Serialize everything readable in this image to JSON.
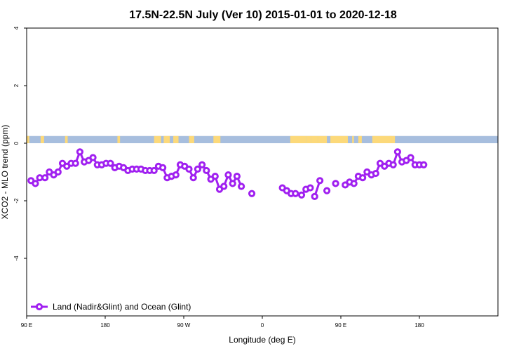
{
  "chart_data": {
    "type": "line",
    "title": "17.5N-22.5N July (Ver 10)   2015-01-01 to 2020-12-18",
    "xlabel": "Longitude (deg E)",
    "ylabel": "XCO2 - MLO trend (ppm)",
    "xlim": [
      -90,
      180
    ],
    "ylim": [
      -6,
      4
    ],
    "x_ticks": [
      {
        "value": -90,
        "label": "90 E"
      },
      {
        "value": -45,
        "label": "180"
      },
      {
        "value": 0,
        "label": "90 W"
      },
      {
        "value": 45,
        "label": "0"
      },
      {
        "value": 90,
        "label": "90 E"
      },
      {
        "value": 135,
        "label": "180"
      }
    ],
    "y_ticks": [
      {
        "value": -4,
        "label": "-4"
      },
      {
        "value": -2,
        "label": "-2"
      },
      {
        "value": 0,
        "label": "0"
      },
      {
        "value": 2,
        "label": "2"
      },
      {
        "value": 4,
        "label": "4"
      }
    ],
    "land_ocean_strip": {
      "y_range": [
        0,
        0.25
      ],
      "ocean_color": "#a7bede",
      "land_color": "#fcd97a",
      "land_segments": [
        [
          -90,
          -88.5
        ],
        [
          -82,
          -80
        ],
        [
          -68,
          -66.5
        ],
        [
          -38,
          -36.5
        ],
        [
          -17,
          -13
        ],
        [
          -11.5,
          -8
        ],
        [
          -6,
          -3
        ],
        [
          3,
          6
        ],
        [
          17,
          21
        ],
        [
          61,
          70
        ],
        [
          70,
          73
        ],
        [
          73,
          77
        ],
        [
          77,
          82
        ],
        [
          84,
          94
        ],
        [
          96.5,
          97.5
        ],
        [
          100,
          102
        ],
        [
          108,
          121
        ],
        [
          118,
          119
        ]
      ]
    },
    "legend": {
      "position": "bottom-left"
    },
    "series": [
      {
        "name": "Land (Nadir&Glint) and Ocean (Glint)",
        "color": "#a020f0",
        "segments": [
          [
            [
              -87.5,
              -1.3
            ],
            [
              -85,
              -1.4
            ],
            [
              -82.5,
              -1.2
            ],
            [
              -79.5,
              -1.2
            ],
            [
              -77,
              -1.0
            ],
            [
              -74.5,
              -1.1
            ],
            [
              -72,
              -1.0
            ],
            [
              -69.5,
              -0.7
            ],
            [
              -67,
              -0.8
            ],
            [
              -64.5,
              -0.7
            ],
            [
              -62,
              -0.7
            ],
            [
              -59.5,
              -0.3
            ],
            [
              -57,
              -0.65
            ],
            [
              -54.5,
              -0.6
            ],
            [
              -52,
              -0.5
            ],
            [
              -49.5,
              -0.75
            ],
            [
              -47,
              -0.75
            ],
            [
              -44.5,
              -0.7
            ],
            [
              -42,
              -0.7
            ],
            [
              -39.5,
              -0.85
            ],
            [
              -37,
              -0.8
            ],
            [
              -34.5,
              -0.85
            ],
            [
              -32,
              -0.95
            ],
            [
              -29.5,
              -0.9
            ],
            [
              -27,
              -0.9
            ],
            [
              -24.5,
              -0.9
            ],
            [
              -22,
              -0.95
            ],
            [
              -19.5,
              -0.95
            ],
            [
              -17,
              -0.95
            ],
            [
              -14.5,
              -0.8
            ],
            [
              -12,
              -0.85
            ],
            [
              -9.5,
              -1.2
            ],
            [
              -7,
              -1.15
            ],
            [
              -4.5,
              -1.1
            ],
            [
              -2,
              -0.75
            ],
            [
              0.5,
              -0.8
            ],
            [
              3,
              -0.9
            ],
            [
              5.5,
              -1.2
            ],
            [
              8,
              -0.9
            ],
            [
              10.5,
              -0.75
            ],
            [
              13,
              -0.95
            ],
            [
              15.5,
              -1.25
            ],
            [
              18,
              -1.15
            ],
            [
              20.5,
              -1.6
            ],
            [
              23,
              -1.5
            ],
            [
              25.5,
              -1.1
            ],
            [
              28,
              -1.4
            ],
            [
              30.5,
              -1.15
            ],
            [
              33,
              -1.5
            ]
          ],
          [
            [
              39,
              -1.75
            ]
          ],
          [
            [
              56.5,
              -1.55
            ],
            [
              59,
              -1.65
            ],
            [
              61.5,
              -1.75
            ],
            [
              64,
              -1.75
            ]
          ],
          [
            [
              67.5,
              -1.8
            ],
            [
              70,
              -1.6
            ],
            [
              72.5,
              -1.55
            ]
          ],
          [
            [
              75,
              -1.85
            ],
            [
              78,
              -1.3
            ]
          ],
          [
            [
              82,
              -1.65
            ]
          ],
          [
            [
              87,
              -1.4
            ]
          ],
          [
            [
              92.5,
              -1.45
            ],
            [
              95,
              -1.35
            ],
            [
              97.5,
              -1.4
            ],
            [
              100,
              -1.15
            ],
            [
              102.5,
              -1.2
            ],
            [
              105,
              -1.0
            ],
            [
              107.5,
              -1.1
            ],
            [
              110,
              -1.05
            ],
            [
              112.5,
              -0.7
            ],
            [
              115,
              -0.8
            ],
            [
              117.5,
              -0.7
            ],
            [
              120,
              -0.75
            ],
            [
              122.5,
              -0.3
            ],
            [
              125,
              -0.65
            ],
            [
              127.5,
              -0.6
            ],
            [
              130,
              -0.5
            ],
            [
              132.5,
              -0.75
            ],
            [
              135,
              -0.75
            ],
            [
              137.5,
              -0.75
            ]
          ]
        ]
      }
    ]
  }
}
